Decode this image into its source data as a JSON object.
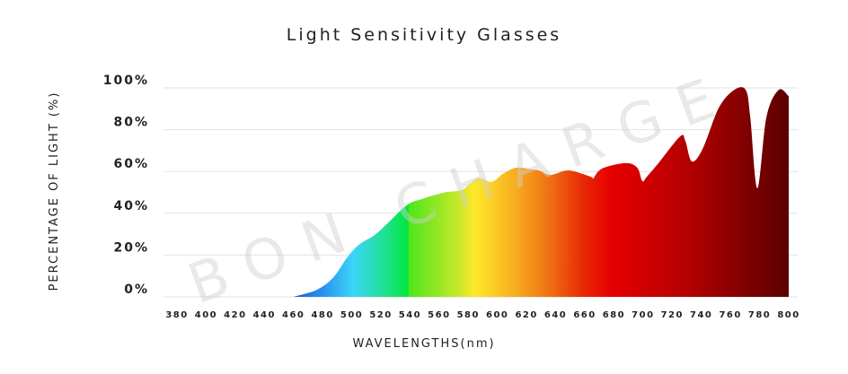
{
  "chart_data": {
    "type": "area",
    "title": "Light Sensitivity Glasses",
    "xlabel": "WAVELENGTHS(nm)",
    "ylabel": "PERCENTAGE OF LIGHT (%)",
    "watermark": "BON CHARGE",
    "xlim": [
      380,
      800
    ],
    "ylim": [
      0,
      100
    ],
    "grid": true,
    "x_ticks": [
      380,
      400,
      420,
      440,
      460,
      480,
      500,
      520,
      540,
      560,
      580,
      600,
      620,
      640,
      660,
      680,
      700,
      720,
      740,
      760,
      780,
      800
    ],
    "y_ticks": [
      {
        "value": 100,
        "label": "100%"
      },
      {
        "value": 80,
        "label": "80%"
      },
      {
        "value": 60,
        "label": "60%"
      },
      {
        "value": 40,
        "label": "40%"
      },
      {
        "value": 20,
        "label": "20%"
      },
      {
        "value": 0,
        "label": "0%"
      }
    ],
    "fill": "spectrum gradient (blue → cyan → green → yellow → orange → red → dark red)",
    "series": [
      {
        "x": [
          460,
          462,
          476,
          487,
          497,
          505,
          515.7,
          524,
          538,
          548,
          562.6,
          575,
          581,
          586.7,
          596,
          604,
          613,
          624,
          628.6,
          636.6,
          649,
          664,
          665.6,
          671.8,
          688,
          696,
          699.5,
          702.6,
          710.6,
          725.5,
          729,
          733.5,
          741,
          752,
          762.5,
          770.5,
          773.6,
          778.5,
          784.7,
          793,
          800
        ],
        "y": [
          0,
          0.4,
          3.4,
          9,
          19,
          25,
          29.6,
          34.8,
          44,
          46.8,
          49.8,
          51,
          54,
          57,
          55,
          59,
          61.8,
          61,
          60.5,
          58.4,
          60.5,
          57.5,
          56.6,
          61.4,
          64,
          61.8,
          55.4,
          57.5,
          64,
          76.8,
          74.7,
          64.8,
          71,
          90.5,
          99,
          99,
          86,
          52,
          86,
          99,
          96
        ]
      }
    ]
  }
}
